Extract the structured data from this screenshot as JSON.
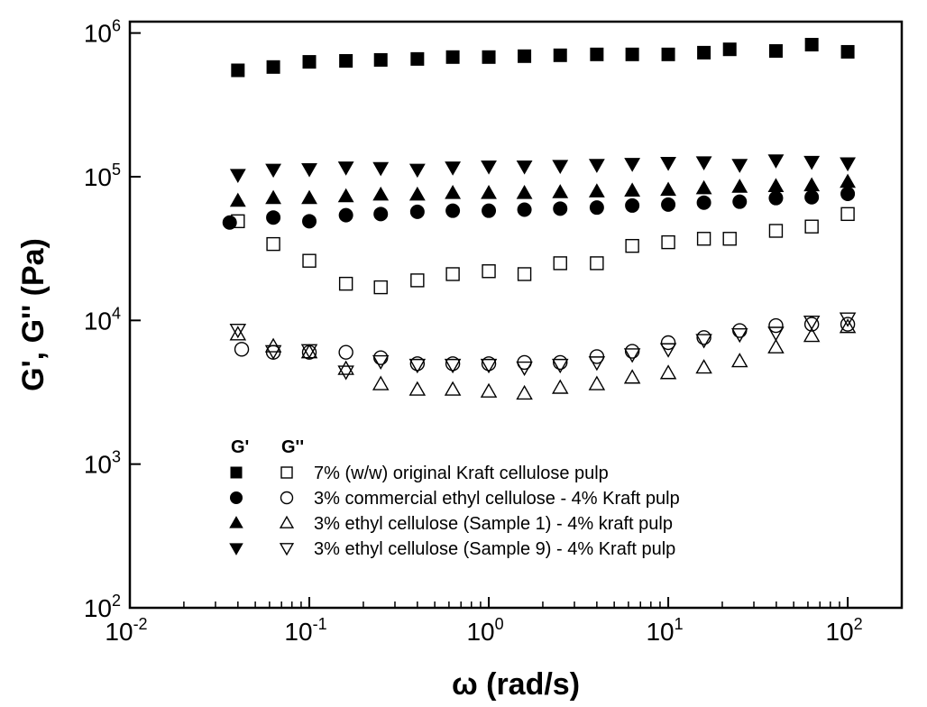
{
  "chart_data": {
    "type": "scatter",
    "title": "",
    "xlabel": "ω (rad/s)",
    "ylabel": "G', G'' (Pa)",
    "xscale": "log",
    "yscale": "log",
    "xlim": [
      0.01,
      200
    ],
    "ylim": [
      100,
      1200000
    ],
    "x_ticks": [
      {
        "value": 0.01,
        "base": "10",
        "exp": "-2"
      },
      {
        "value": 0.1,
        "base": "10",
        "exp": "-1"
      },
      {
        "value": 1,
        "base": "10",
        "exp": "0"
      },
      {
        "value": 10,
        "base": "10",
        "exp": "1"
      },
      {
        "value": 100,
        "base": "10",
        "exp": "2"
      }
    ],
    "y_ticks": [
      {
        "value": 100,
        "base": "10",
        "exp": "2"
      },
      {
        "value": 1000,
        "base": "10",
        "exp": "3"
      },
      {
        "value": 10000,
        "base": "10",
        "exp": "4"
      },
      {
        "value": 100000,
        "base": "10",
        "exp": "5"
      },
      {
        "value": 1000000,
        "base": "10",
        "exp": "6"
      }
    ],
    "grid": false,
    "legend_position": "bottom-left",
    "legend_header": {
      "g_prime": "G'",
      "g_double_prime": "G''"
    },
    "series": [
      {
        "name": "7% (w/w) original Kraft cellulose pulp",
        "quantity": "G'",
        "marker": "square",
        "filled": true,
        "x": [
          0.04,
          0.063,
          0.1,
          0.16,
          0.25,
          0.4,
          0.63,
          1.0,
          1.58,
          2.5,
          4.0,
          6.3,
          10,
          15.8,
          22,
          39.8,
          63,
          100
        ],
        "y": [
          550000,
          580000,
          630000,
          640000,
          650000,
          660000,
          680000,
          680000,
          690000,
          700000,
          710000,
          710000,
          710000,
          730000,
          770000,
          750000,
          830000,
          740000
        ]
      },
      {
        "name": "7% (w/w) original Kraft cellulose pulp",
        "quantity": "G''",
        "marker": "square",
        "filled": false,
        "x": [
          0.04,
          0.063,
          0.1,
          0.16,
          0.25,
          0.4,
          0.63,
          1.0,
          1.58,
          2.5,
          4.0,
          6.3,
          10,
          15.8,
          22,
          39.8,
          63,
          100
        ],
        "y": [
          49000,
          34000,
          26000,
          18000,
          17000,
          19000,
          21000,
          22000,
          21000,
          25000,
          25000,
          33000,
          35000,
          37000,
          37000,
          42000,
          45000,
          55000
        ]
      },
      {
        "name": "3% commercial ethyl cellulose - 4% Kraft pulp",
        "quantity": "G'",
        "marker": "circle",
        "filled": true,
        "x": [
          0.036,
          0.063,
          0.1,
          0.16,
          0.25,
          0.4,
          0.63,
          1.0,
          1.58,
          2.5,
          4.0,
          6.3,
          10,
          15.8,
          25,
          39.8,
          63,
          100
        ],
        "y": [
          48000,
          52000,
          49000,
          54000,
          55000,
          57000,
          58000,
          58000,
          59000,
          60000,
          61000,
          63000,
          64000,
          66000,
          67000,
          71000,
          72000,
          76000
        ]
      },
      {
        "name": "3% commercial ethyl cellulose - 4% Kraft pulp",
        "quantity": "G''",
        "marker": "circle",
        "filled": false,
        "x": [
          0.042,
          0.063,
          0.1,
          0.16,
          0.25,
          0.4,
          0.63,
          1.0,
          1.58,
          2.5,
          4.0,
          6.3,
          10,
          15.8,
          25,
          39.8,
          63,
          100
        ],
        "y": [
          6300,
          6000,
          6000,
          6000,
          5500,
          5000,
          5000,
          5000,
          5100,
          5100,
          5600,
          6100,
          7000,
          7600,
          8500,
          9200,
          9400,
          9400
        ]
      },
      {
        "name": "3% ethyl cellulose (Sample 1) - 4% kraft pulp",
        "quantity": "G'",
        "marker": "triangle-up",
        "filled": true,
        "x": [
          0.04,
          0.063,
          0.1,
          0.16,
          0.25,
          0.4,
          0.63,
          1.0,
          1.58,
          2.5,
          4.0,
          6.3,
          10,
          15.8,
          25,
          39.8,
          63,
          100
        ],
        "y": [
          68000,
          71000,
          71000,
          73000,
          75000,
          75000,
          77000,
          77000,
          77000,
          78000,
          79000,
          80000,
          81000,
          83000,
          85000,
          86000,
          87000,
          92000
        ]
      },
      {
        "name": "3% ethyl cellulose (Sample 1) - 4% kraft pulp",
        "quantity": "G''",
        "marker": "triangle-up",
        "filled": false,
        "x": [
          0.04,
          0.063,
          0.1,
          0.16,
          0.25,
          0.4,
          0.63,
          1.0,
          1.58,
          2.5,
          4.0,
          6.3,
          10,
          15.8,
          25,
          39.8,
          63,
          100
        ],
        "y": [
          8000,
          6600,
          6000,
          4600,
          3600,
          3300,
          3300,
          3200,
          3100,
          3400,
          3600,
          4000,
          4300,
          4700,
          5200,
          6500,
          7800,
          9000
        ]
      },
      {
        "name": "3% ethyl cellulose (Sample 9) - 4% Kraft pulp",
        "quantity": "G'",
        "marker": "triangle-down",
        "filled": true,
        "x": [
          0.04,
          0.063,
          0.1,
          0.16,
          0.25,
          0.4,
          0.63,
          1.0,
          1.58,
          2.5,
          4.0,
          6.3,
          10,
          15.8,
          25,
          39.8,
          63,
          100
        ],
        "y": [
          103000,
          112000,
          113000,
          116000,
          115000,
          112000,
          116000,
          118000,
          118000,
          119000,
          121000,
          123000,
          125000,
          126000,
          121000,
          130000,
          127000,
          124000
        ]
      },
      {
        "name": "3% ethyl cellulose (Sample 9) - 4% Kraft pulp",
        "quantity": "G''",
        "marker": "triangle-down",
        "filled": false,
        "x": [
          0.04,
          0.063,
          0.1,
          0.16,
          0.25,
          0.4,
          0.63,
          1.0,
          1.58,
          2.5,
          4.0,
          6.3,
          10,
          15.8,
          25,
          39.8,
          63,
          100
        ],
        "y": [
          8600,
          6100,
          6200,
          4400,
          5200,
          4900,
          4900,
          4900,
          4700,
          4900,
          5100,
          5800,
          6300,
          7300,
          8000,
          8200,
          9800,
          10300
        ]
      }
    ],
    "legend": [
      {
        "label": "7% (w/w) original Kraft cellulose pulp",
        "marker": "square"
      },
      {
        "label": "3% commercial ethyl cellulose - 4% Kraft pulp",
        "marker": "circle"
      },
      {
        "label": "3% ethyl cellulose (Sample 1) - 4% kraft pulp",
        "marker": "triangle-up"
      },
      {
        "label": "3% ethyl cellulose (Sample 9) - 4% Kraft pulp",
        "marker": "triangle-down"
      }
    ]
  }
}
